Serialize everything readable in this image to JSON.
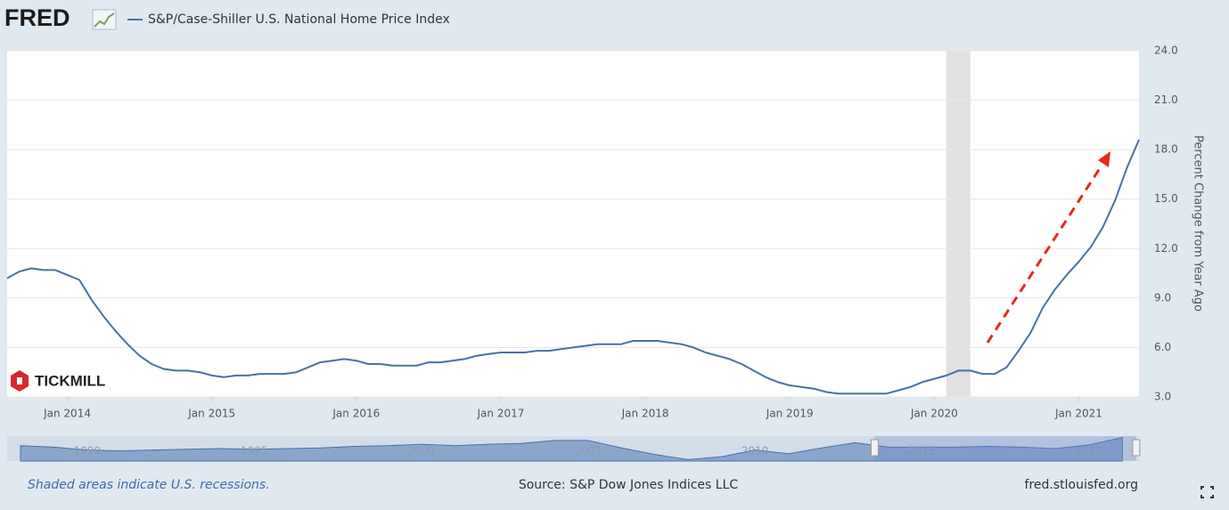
{
  "logo": "FRED",
  "watermark": "TICKMILL",
  "chart_data": {
    "type": "line",
    "series": [
      {
        "name": "S&P/Case-Shiller U.S. National Home Price Index",
        "color": "#4572a7",
        "values": [
          10.2,
          10.6,
          10.8,
          10.7,
          10.7,
          10.4,
          10.1,
          8.9,
          7.9,
          7.0,
          6.2,
          5.5,
          5.0,
          4.7,
          4.6,
          4.6,
          4.5,
          4.3,
          4.2,
          4.3,
          4.3,
          4.4,
          4.4,
          4.4,
          4.5,
          4.8,
          5.1,
          5.2,
          5.3,
          5.2,
          5.0,
          5.0,
          4.9,
          4.9,
          4.9,
          5.1,
          5.1,
          5.2,
          5.3,
          5.5,
          5.6,
          5.7,
          5.7,
          5.7,
          5.8,
          5.8,
          5.9,
          6.0,
          6.1,
          6.2,
          6.2,
          6.2,
          6.4,
          6.4,
          6.4,
          6.3,
          6.2,
          6.0,
          5.7,
          5.5,
          5.3,
          5.0,
          4.6,
          4.2,
          3.9,
          3.7,
          3.6,
          3.5,
          3.3,
          3.2,
          3.2,
          3.2,
          3.2,
          3.2,
          3.4,
          3.6,
          3.9,
          4.1,
          4.3,
          4.6,
          4.6,
          4.4,
          4.4,
          4.8,
          5.8,
          6.9,
          8.4,
          9.5,
          10.4,
          11.2,
          12.1,
          13.3,
          14.9,
          16.9,
          18.6
        ]
      }
    ],
    "x": [
      "2013-08",
      "2013-09",
      "2013-10",
      "2013-11",
      "2013-12",
      "2014-01",
      "2014-02",
      "2014-03",
      "2014-04",
      "2014-05",
      "2014-06",
      "2014-07",
      "2014-08",
      "2014-09",
      "2014-10",
      "2014-11",
      "2014-12",
      "2015-01",
      "2015-02",
      "2015-03",
      "2015-04",
      "2015-05",
      "2015-06",
      "2015-07",
      "2015-08",
      "2015-09",
      "2015-10",
      "2015-11",
      "2015-12",
      "2016-01",
      "2016-02",
      "2016-03",
      "2016-04",
      "2016-05",
      "2016-06",
      "2016-07",
      "2016-08",
      "2016-09",
      "2016-10",
      "2016-11",
      "2016-12",
      "2017-01",
      "2017-02",
      "2017-03",
      "2017-04",
      "2017-05",
      "2017-06",
      "2017-07",
      "2017-08",
      "2017-09",
      "2017-10",
      "2017-11",
      "2017-12",
      "2018-01",
      "2018-02",
      "2018-03",
      "2018-04",
      "2018-05",
      "2018-06",
      "2018-07",
      "2018-08",
      "2018-09",
      "2018-10",
      "2018-11",
      "2018-12",
      "2019-01",
      "2019-02",
      "2019-03",
      "2019-04",
      "2019-05",
      "2019-06",
      "2019-07",
      "2019-08",
      "2019-09",
      "2019-10",
      "2019-11",
      "2019-12",
      "2020-01",
      "2020-02",
      "2020-03",
      "2020-04",
      "2020-05",
      "2020-06",
      "2020-07",
      "2020-08",
      "2020-09",
      "2020-10",
      "2020-11",
      "2020-12",
      "2021-01",
      "2021-02",
      "2021-03",
      "2021-04",
      "2021-05",
      "2021-06"
    ],
    "xlim": [
      "2013-08",
      "2021-06"
    ],
    "xticks": [
      {
        "value": "2014-01",
        "label": "Jan 2014"
      },
      {
        "value": "2015-01",
        "label": "Jan 2015"
      },
      {
        "value": "2016-01",
        "label": "Jan 2016"
      },
      {
        "value": "2017-01",
        "label": "Jan 2017"
      },
      {
        "value": "2018-01",
        "label": "Jan 2018"
      },
      {
        "value": "2019-01",
        "label": "Jan 2019"
      },
      {
        "value": "2020-01",
        "label": "Jan 2020"
      },
      {
        "value": "2021-01",
        "label": "Jan 2021"
      }
    ],
    "ylim": [
      3,
      24
    ],
    "yticks": [
      {
        "value": 3,
        "label": "3.0"
      },
      {
        "value": 6,
        "label": "6.0"
      },
      {
        "value": 9,
        "label": "9.0"
      },
      {
        "value": 12,
        "label": "12.0"
      },
      {
        "value": 15,
        "label": "15.0"
      },
      {
        "value": 18,
        "label": "18.0"
      },
      {
        "value": 21,
        "label": "21.0"
      },
      {
        "value": 24,
        "label": "24.0"
      }
    ],
    "y_axis_label": "Percent Change from Year Ago",
    "y_axis_side": "right",
    "grid": true,
    "recessions": [
      {
        "start": "2020-02",
        "end": "2020-04"
      }
    ],
    "navigator": {
      "type": "area",
      "x": [
        1988,
        1989,
        1990,
        1991,
        1992,
        1993,
        1994,
        1995,
        1996,
        1997,
        1998,
        1999,
        2000,
        2001,
        2002,
        2003,
        2004,
        2005,
        2006,
        2007,
        2008,
        2009,
        2010,
        2011,
        2012,
        2013,
        2014,
        2015,
        2016,
        2017,
        2018,
        2019,
        2020,
        2021
      ],
      "values": [
        7,
        5,
        1,
        0,
        1,
        2,
        3,
        2,
        3,
        4,
        6,
        7,
        9,
        7,
        9,
        10,
        14,
        14,
        4,
        -5,
        -12,
        -8,
        1,
        -4,
        4,
        11,
        5,
        5,
        5,
        6,
        5,
        3,
        8,
        18
      ],
      "xlim": [
        1987.6,
        2021.5
      ],
      "ylim": [
        -14,
        20
      ],
      "xticks": [
        1990,
        1995,
        2000,
        2005,
        2010,
        2015,
        2020
      ]
    },
    "footer_note": "Shaded areas indicate U.S. recessions.",
    "source": "Source: S&P Dow Jones Indices LLC",
    "site": "fred.stlouisfed.org"
  }
}
